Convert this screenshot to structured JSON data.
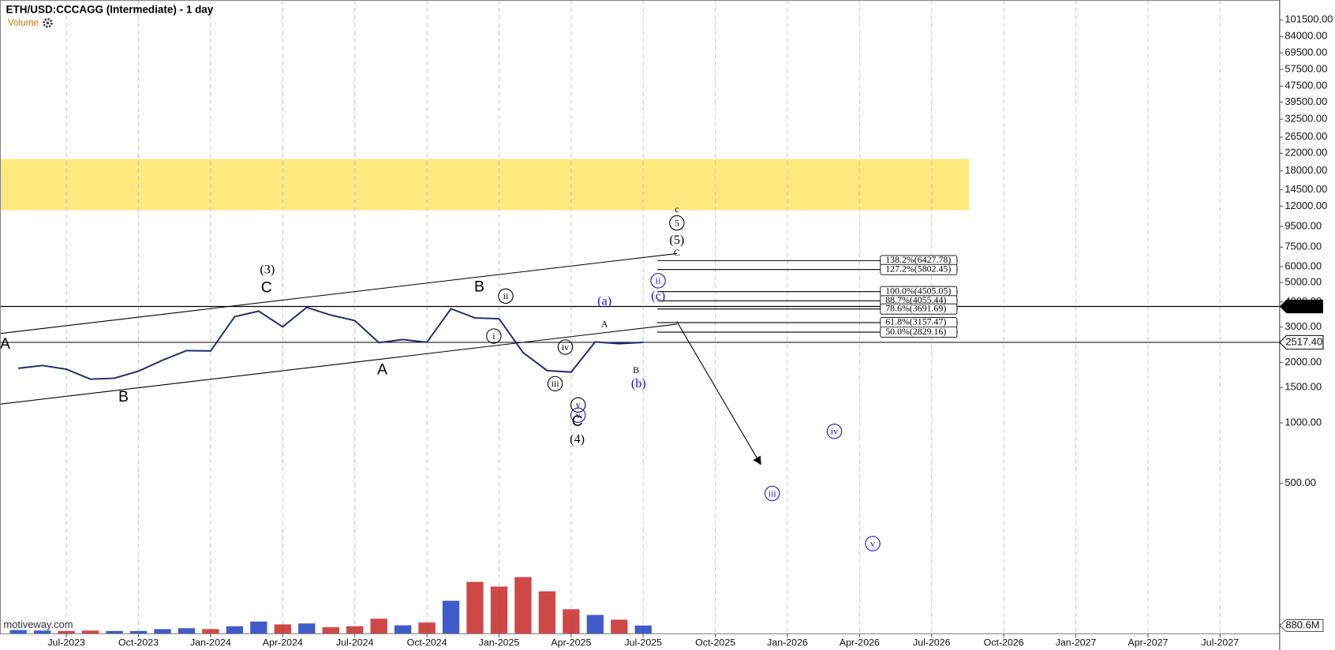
{
  "chart_data": {
    "type": "line",
    "title": "ETH/USD:CCCAGG (Intermediate) - 1 day",
    "watermark": "motiveway.com",
    "categories": [
      null,
      null,
      "Jul-2023",
      null,
      null,
      "Oct-2023",
      null,
      null,
      "Jan-2024",
      null,
      null,
      "Apr-2024",
      null,
      null,
      "Jul-2024",
      null,
      null,
      "Oct-2024",
      null,
      null,
      "Jan-2025",
      null,
      null,
      "Apr-2025",
      null,
      null,
      "Jul-2025",
      null,
      null,
      "Oct-2025",
      null,
      null,
      "Jan-2026",
      null,
      null,
      "Apr-2026",
      null,
      null,
      "Jul-2026",
      null,
      null,
      "Oct-2026",
      null,
      null,
      "Jan-2027",
      null,
      null,
      "Apr-2027",
      null,
      null,
      "Jul-2027",
      null,
      null
    ],
    "series": [
      {
        "name": "ETH/USD",
        "color": "#1a2a6c",
        "values": [
          1870,
          1930,
          1850,
          1650,
          1670,
          1810,
          2050,
          2290,
          2280,
          3380,
          3600,
          3010,
          3760,
          3440,
          3230,
          2510,
          2600,
          2520,
          3700,
          3330,
          3300,
          2240,
          1820,
          1790,
          2530,
          2480,
          2517.4,
          null,
          null,
          null,
          null,
          null,
          null,
          null,
          null,
          null,
          null,
          null,
          null,
          null,
          null,
          null,
          null,
          null,
          null,
          null,
          null,
          null,
          null,
          null,
          null,
          null,
          null
        ]
      }
    ],
    "volume": {
      "name": "Volume",
      "color": "#e07000",
      "up_color": "#1f3fbf",
      "down_color": "#c62828",
      "values": [
        400000000,
        350000000,
        300000000,
        350000000,
        300000000,
        300000000,
        500000000,
        600000000,
        500000000,
        800000000,
        1300000000,
        1000000000,
        1100000000,
        700000000,
        800000000,
        1600000000,
        900000000,
        1200000000,
        3500000000,
        5500000000,
        5000000000,
        6000000000,
        4500000000,
        2600000000,
        2000000000,
        1500000000,
        880600000
      ],
      "ylim": [
        0,
        9000000000
      ],
      "last": {
        "value": 880600000,
        "label": "880.6M"
      }
    },
    "log_scale": true,
    "grid": "x",
    "ylim": [
      89,
      127600
    ],
    "yticks": [
      {
        "value": 101500,
        "label": "101500.00"
      },
      {
        "value": 84000,
        "label": "84000.00"
      },
      {
        "value": 69500,
        "label": "69500.00"
      },
      {
        "value": 57500,
        "label": "57500.00"
      },
      {
        "value": 47500,
        "label": "47500.00"
      },
      {
        "value": 39500,
        "label": "39500.00"
      },
      {
        "value": 32500,
        "label": "32500.00"
      },
      {
        "value": 26500,
        "label": "26500.00"
      },
      {
        "value": 22000,
        "label": "22000.00"
      },
      {
        "value": 18000,
        "label": "18000.00"
      },
      {
        "value": 14500,
        "label": "14500.00"
      },
      {
        "value": 12000,
        "label": "12000.00"
      },
      {
        "value": 9500,
        "label": "9500.00"
      },
      {
        "value": 7500,
        "label": "7500.00"
      },
      {
        "value": 6000,
        "label": "6000.00"
      },
      {
        "value": 5000,
        "label": "5000.00"
      },
      {
        "value": 4000,
        "label": "4000.00"
      },
      {
        "value": 3000,
        "label": "3000.00"
      },
      {
        "value": 2000,
        "label": "2000.00"
      },
      {
        "value": 1500,
        "label": "1500.00"
      },
      {
        "value": 1000,
        "label": "1000.00"
      },
      {
        "value": 500,
        "label": "500.00"
      }
    ],
    "last_price": {
      "value": 2517.4,
      "label": "2517.40"
    },
    "price_lines": [
      3800
    ],
    "target_zone": [
      11460,
      20600
    ],
    "fib_levels": [
      {
        "value": 6427.78,
        "label": "138.2%(6427.78)"
      },
      {
        "value": 5802.45,
        "label": "127.2%(5802.45)"
      },
      {
        "value": 4505.05,
        "label": "100.0%(4505.05)"
      },
      {
        "value": 4055.44,
        "label": "88.7%(4055.44)"
      },
      {
        "value": 3691.69,
        "label": "78.6%(3691.69)"
      },
      {
        "value": 3157.47,
        "label": "61.8%(3157.47)"
      },
      {
        "value": 2829.16,
        "label": "50.0%(2829.16)"
      }
    ],
    "wave_labels": [
      "A",
      "B",
      "(3)",
      "C",
      "A",
      "B",
      "ii",
      "i",
      "iv",
      "iii",
      "v",
      "v",
      "C",
      "(4)",
      "(a)",
      "A",
      "B",
      "(b)",
      "ii",
      "(c)",
      "c",
      "5",
      "(5)",
      "C",
      "iii",
      "iv",
      "v"
    ]
  }
}
